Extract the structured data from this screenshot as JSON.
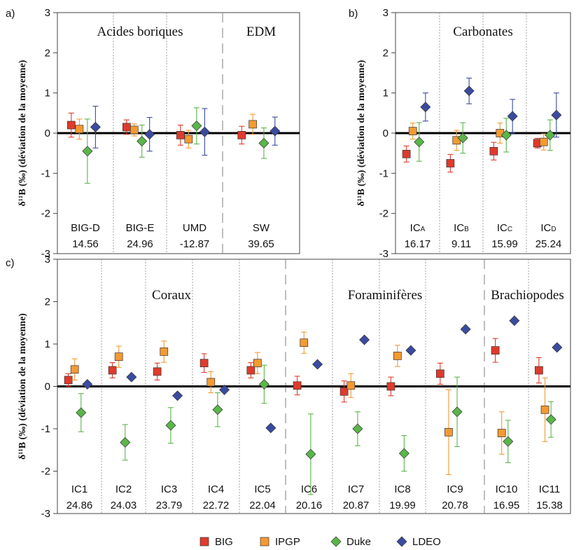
{
  "legend": {
    "position": "bottom",
    "items": [
      {
        "name": "BIG",
        "color": "#e03a2c",
        "marker": "square"
      },
      {
        "name": "IPGP",
        "color": "#f39a32",
        "marker": "square"
      },
      {
        "name": "Duke",
        "color": "#5ab649",
        "marker": "diamond"
      },
      {
        "name": "LDEO",
        "color": "#3a4ba0",
        "marker": "diamond"
      }
    ]
  },
  "chart_data": [
    {
      "panel_label": "a)",
      "type": "scatter",
      "ylabel": "δ¹¹B (‰) (déviation de la moyenne)",
      "ylim": [
        -3,
        3
      ],
      "yticks": [
        "3",
        "2",
        "1",
        "0",
        "-1",
        "-2",
        "-3"
      ],
      "baseline": 0,
      "groups": [
        {
          "title": "Acides boriques",
          "span": [
            0,
            2
          ]
        },
        {
          "title": "EDM",
          "span": [
            3,
            3
          ]
        }
      ],
      "categories": [
        {
          "label": "BIG-D",
          "value": "14.56"
        },
        {
          "label": "BIG-E",
          "value": "24.96"
        },
        {
          "label": "UMD",
          "value": "-12.87"
        },
        {
          "label": "SW",
          "value": "39.65"
        }
      ],
      "series": [
        {
          "name": "BIG",
          "y": [
            0.2,
            0.15,
            -0.05,
            -0.05
          ],
          "err": [
            0.3,
            0.18,
            0.25,
            0.22
          ]
        },
        {
          "name": "IPGP",
          "y": [
            0.1,
            0.08,
            -0.15,
            0.22
          ],
          "err": [
            0.25,
            0.15,
            0.22,
            0.25
          ]
        },
        {
          "name": "Duke",
          "y": [
            -0.45,
            -0.2,
            0.18,
            -0.25
          ],
          "err": [
            0.8,
            0.4,
            0.45,
            0.38
          ]
        },
        {
          "name": "LDEO",
          "y": [
            0.15,
            -0.03,
            0.03,
            0.05
          ],
          "err": [
            0.52,
            0.42,
            0.58,
            0.35
          ]
        }
      ]
    },
    {
      "panel_label": "b)",
      "type": "scatter",
      "ylabel": "δ¹¹B (‰) (déviation de la moyenne)",
      "ylim": [
        -3,
        3
      ],
      "yticks": [
        "3",
        "2",
        "1",
        "0",
        "-1",
        "-2",
        "-3"
      ],
      "baseline": 0,
      "groups": [
        {
          "title": "Carbonates",
          "span": [
            0,
            3
          ]
        }
      ],
      "categories": [
        {
          "label": "IC",
          "sub": "A",
          "value": "16.17"
        },
        {
          "label": "IC",
          "sub": "B",
          "value": "9.11"
        },
        {
          "label": "IC",
          "sub": "C",
          "value": "15.99"
        },
        {
          "label": "IC",
          "sub": "D",
          "value": "25.24"
        }
      ],
      "series": [
        {
          "name": "BIG",
          "y": [
            -0.52,
            -0.75,
            -0.45,
            -0.25
          ],
          "err": [
            0.2,
            0.22,
            0.22,
            0.12
          ]
        },
        {
          "name": "IPGP",
          "y": [
            0.05,
            -0.18,
            0.0,
            -0.22
          ],
          "err": [
            0.2,
            0.25,
            0.25,
            0.2
          ]
        },
        {
          "name": "Duke",
          "y": [
            -0.22,
            -0.12,
            -0.05,
            -0.05
          ],
          "err": [
            0.48,
            0.38,
            0.42,
            0.38
          ]
        },
        {
          "name": "LDEO",
          "y": [
            0.65,
            1.05,
            0.42,
            0.45
          ],
          "err": [
            0.35,
            0.32,
            0.42,
            0.55
          ]
        }
      ]
    },
    {
      "panel_label": "c)",
      "type": "scatter",
      "ylabel": "δ¹¹B (‰) (déviation de la moyenne)",
      "ylim": [
        -3,
        3
      ],
      "yticks": [
        "3",
        "2",
        "1",
        "0",
        "-1",
        "-2",
        "-3"
      ],
      "baseline": 0,
      "groups": [
        {
          "title": "Coraux",
          "span": [
            0,
            4
          ]
        },
        {
          "title": "Foraminifères",
          "span": [
            5,
            8
          ]
        },
        {
          "title": "Brachiopodes",
          "span": [
            9,
            10
          ]
        }
      ],
      "categories": [
        {
          "label": "IC1",
          "value": "24.86"
        },
        {
          "label": "IC2",
          "value": "24.03"
        },
        {
          "label": "IC3",
          "value": "23.79"
        },
        {
          "label": "IC4",
          "value": "22.72"
        },
        {
          "label": "IC5",
          "value": "22.04"
        },
        {
          "label": "IC6",
          "value": "20.16"
        },
        {
          "label": "IC7",
          "value": "20.87"
        },
        {
          "label": "IC8",
          "value": "19.99"
        },
        {
          "label": "IC9",
          "value": "20.78"
        },
        {
          "label": "IC10",
          "value": "16.95"
        },
        {
          "label": "IC11",
          "value": "15.38"
        }
      ],
      "series": [
        {
          "name": "BIG",
          "y": [
            0.15,
            0.38,
            0.35,
            0.55,
            0.38,
            0.02,
            -0.12,
            0.0,
            0.3,
            0.85,
            0.38
          ],
          "err": [
            0.15,
            0.18,
            0.2,
            0.22,
            0.18,
            0.22,
            0.25,
            0.22,
            0.25,
            0.28,
            0.3
          ]
        },
        {
          "name": "IPGP",
          "y": [
            0.4,
            0.7,
            0.82,
            0.1,
            0.55,
            1.03,
            0.02,
            0.72,
            -1.08,
            -1.1,
            -0.55
          ],
          "err": [
            0.25,
            0.25,
            0.25,
            0.25,
            0.25,
            0.25,
            0.28,
            0.25,
            1.0,
            0.5,
            0.75
          ]
        },
        {
          "name": "Duke",
          "y": [
            -0.62,
            -1.32,
            -0.92,
            -0.55,
            0.05,
            -1.6,
            -1.0,
            -1.58,
            -0.6,
            -1.3,
            -0.78
          ],
          "err": [
            0.45,
            0.42,
            0.42,
            0.4,
            0.45,
            0.95,
            0.4,
            0.42,
            0.82,
            0.5,
            0.42
          ]
        },
        {
          "name": "LDEO",
          "y": [
            0.05,
            0.22,
            -0.22,
            -0.08,
            -0.98,
            0.52,
            1.1,
            0.85,
            1.35,
            1.55,
            0.92
          ]
        }
      ]
    }
  ]
}
